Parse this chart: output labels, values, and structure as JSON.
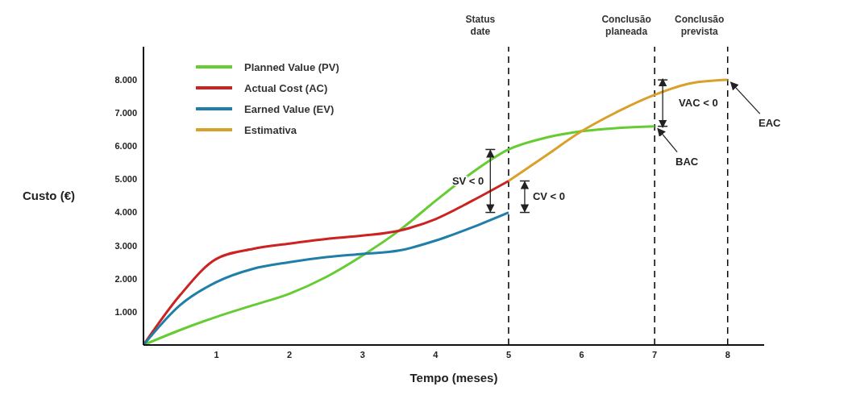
{
  "chart_data": {
    "type": "line",
    "xlabel": "Tempo (meses)",
    "ylabel": "Custo (€)",
    "xlim": [
      0,
      8.5
    ],
    "xticks": [
      1,
      2,
      3,
      4,
      5,
      6,
      7,
      8
    ],
    "ylim": [
      0,
      9000
    ],
    "yticks": [
      {
        "value": 1000,
        "label": "1.000"
      },
      {
        "value": 2000,
        "label": "2.000"
      },
      {
        "value": 3000,
        "label": "3.000"
      },
      {
        "value": 4000,
        "label": "4.000"
      },
      {
        "value": 5000,
        "label": "5.000"
      },
      {
        "value": 6000,
        "label": "6.000"
      },
      {
        "value": 7000,
        "label": "7.000"
      },
      {
        "value": 8000,
        "label": "8.000"
      }
    ],
    "legend": "top left",
    "marker": "none",
    "line_style": "solid",
    "series": [
      {
        "name": "Planned Value (PV)",
        "color": "#66cc33",
        "x": [
          0,
          0.5,
          1,
          1.5,
          2,
          2.5,
          3,
          3.5,
          4,
          4.5,
          5,
          5.5,
          6,
          6.5,
          7
        ],
        "values": [
          0,
          450,
          850,
          1200,
          1550,
          2050,
          2700,
          3450,
          4350,
          5200,
          5900,
          6250,
          6450,
          6550,
          6600
        ]
      },
      {
        "name": "Actual Cost (AC)",
        "color": "#cc2222",
        "x": [
          0,
          0.5,
          1,
          1.5,
          2,
          2.5,
          3,
          3.5,
          4,
          4.5,
          5
        ],
        "values": [
          0,
          1500,
          2600,
          2900,
          3060,
          3200,
          3300,
          3450,
          3800,
          4350,
          4950
        ]
      },
      {
        "name": "Earned Value (EV)",
        "color": "#1f7fa8",
        "x": [
          0,
          0.5,
          1,
          1.5,
          2,
          2.5,
          3,
          3.5,
          4,
          4.5,
          5
        ],
        "values": [
          0,
          1200,
          1900,
          2300,
          2500,
          2650,
          2750,
          2850,
          3150,
          3550,
          4000
        ]
      },
      {
        "name": "Estimativa",
        "color": "#d9a02a",
        "x": [
          5,
          5.5,
          6,
          6.5,
          7,
          7.5,
          8
        ],
        "values": [
          4950,
          5700,
          6450,
          7050,
          7550,
          7900,
          8000
        ]
      }
    ],
    "ref_lines": [
      {
        "axis": "x",
        "value": 5,
        "label": "Status date",
        "color": "#000000",
        "line_style": "dashed"
      },
      {
        "axis": "x",
        "value": 7,
        "label": "Conclusão planeada",
        "color": "#000000",
        "line_style": "dashed"
      },
      {
        "axis": "x",
        "value": 8,
        "label": "Conclusão prevista",
        "color": "#000000",
        "line_style": "dashed"
      }
    ],
    "annotations": [
      "SV < 0",
      {
        "text": "CV < 0",
        "x": 5,
        "y": 4475
      },
      {
        "text": "VAC < 0",
        "x": 7,
        "y": 7300
      },
      {
        "text": "BAC",
        "x": 7,
        "y": 6600
      },
      {
        "text": "EAC",
        "x": 8,
        "y": 8000
      }
    ]
  }
}
